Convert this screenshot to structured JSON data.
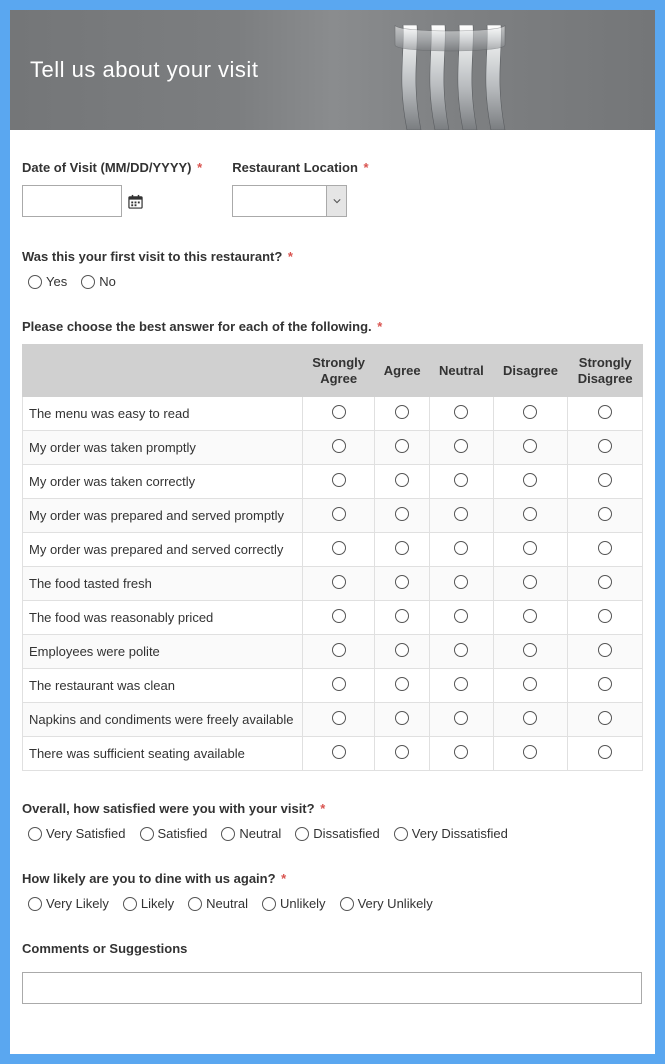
{
  "banner": {
    "title": "Tell us about your visit",
    "bg_gradient": [
      "#747678",
      "#7c7e80",
      "#8a8c8e",
      "#7e8082",
      "#747678"
    ],
    "title_color": "#ffffff",
    "title_fontsize": 22
  },
  "required_color": "#d9534f",
  "fields": {
    "date": {
      "label": "Date of Visit (MM/DD/YYYY)",
      "required": true,
      "value": ""
    },
    "location": {
      "label": "Restaurant Location",
      "required": true,
      "value": ""
    }
  },
  "first_visit": {
    "label": "Was this your first visit to this restaurant?",
    "required": true,
    "options": [
      "Yes",
      "No"
    ]
  },
  "matrix": {
    "label": "Please choose the best answer for each of the following.",
    "required": true,
    "header_bg": "#d0d0d0",
    "border_color": "#e0e0e0",
    "columns": [
      "Strongly Agree",
      "Agree",
      "Neutral",
      "Disagree",
      "Strongly Disagree"
    ],
    "rows": [
      "The menu was easy to read",
      "My order was taken promptly",
      "My order was taken correctly",
      "My order was prepared and served promptly",
      "My order was prepared and served correctly",
      "The food tasted fresh",
      "The food was reasonably priced",
      "Employees were polite",
      "The restaurant was clean",
      "Napkins and condiments were freely available",
      "There was sufficient seating available"
    ]
  },
  "overall_sat": {
    "label": "Overall, how satisfied were you with your visit?",
    "required": true,
    "options": [
      "Very Satisfied",
      "Satisfied",
      "Neutral",
      "Dissatisfied",
      "Very Dissatisfied"
    ]
  },
  "dine_again": {
    "label": "How likely are you to dine with us again?",
    "required": true,
    "options": [
      "Very Likely",
      "Likely",
      "Neutral",
      "Unlikely",
      "Very Unlikely"
    ]
  },
  "comments": {
    "label": "Comments or Suggestions",
    "required": false,
    "value": ""
  },
  "asterisk": "*"
}
